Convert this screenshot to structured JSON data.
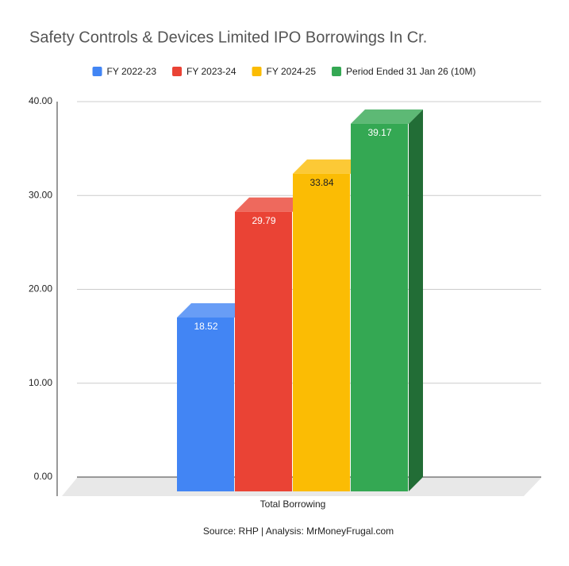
{
  "chart_data": {
    "type": "bar3d",
    "title": "Safety Controls & Devices Limited IPO Borrowings In Cr.",
    "categories": [
      "Total Borrowing"
    ],
    "series": [
      {
        "name": "FY 2022-23",
        "color": "#4285f4",
        "values": [
          18.52
        ]
      },
      {
        "name": "FY 2023-24",
        "color": "#ea4335",
        "values": [
          29.79
        ]
      },
      {
        "name": "FY 2024-25",
        "color": "#fbbc04",
        "values": [
          33.84
        ]
      },
      {
        "name": "Period Ended 31 Jan 26 (10M)",
        "color": "#34a853",
        "values": [
          39.17
        ]
      }
    ],
    "ylim": [
      0,
      40
    ],
    "yticks": [
      {
        "value": 0,
        "label": "0.00"
      },
      {
        "value": 10,
        "label": "10.00"
      },
      {
        "value": 20,
        "label": "20.00"
      },
      {
        "value": 30,
        "label": "30.00"
      },
      {
        "value": 40,
        "label": "40.00"
      }
    ],
    "grid": true,
    "legend": "top",
    "note": "Source: RHP | Analysis: MrMoneyFrugal.com"
  }
}
